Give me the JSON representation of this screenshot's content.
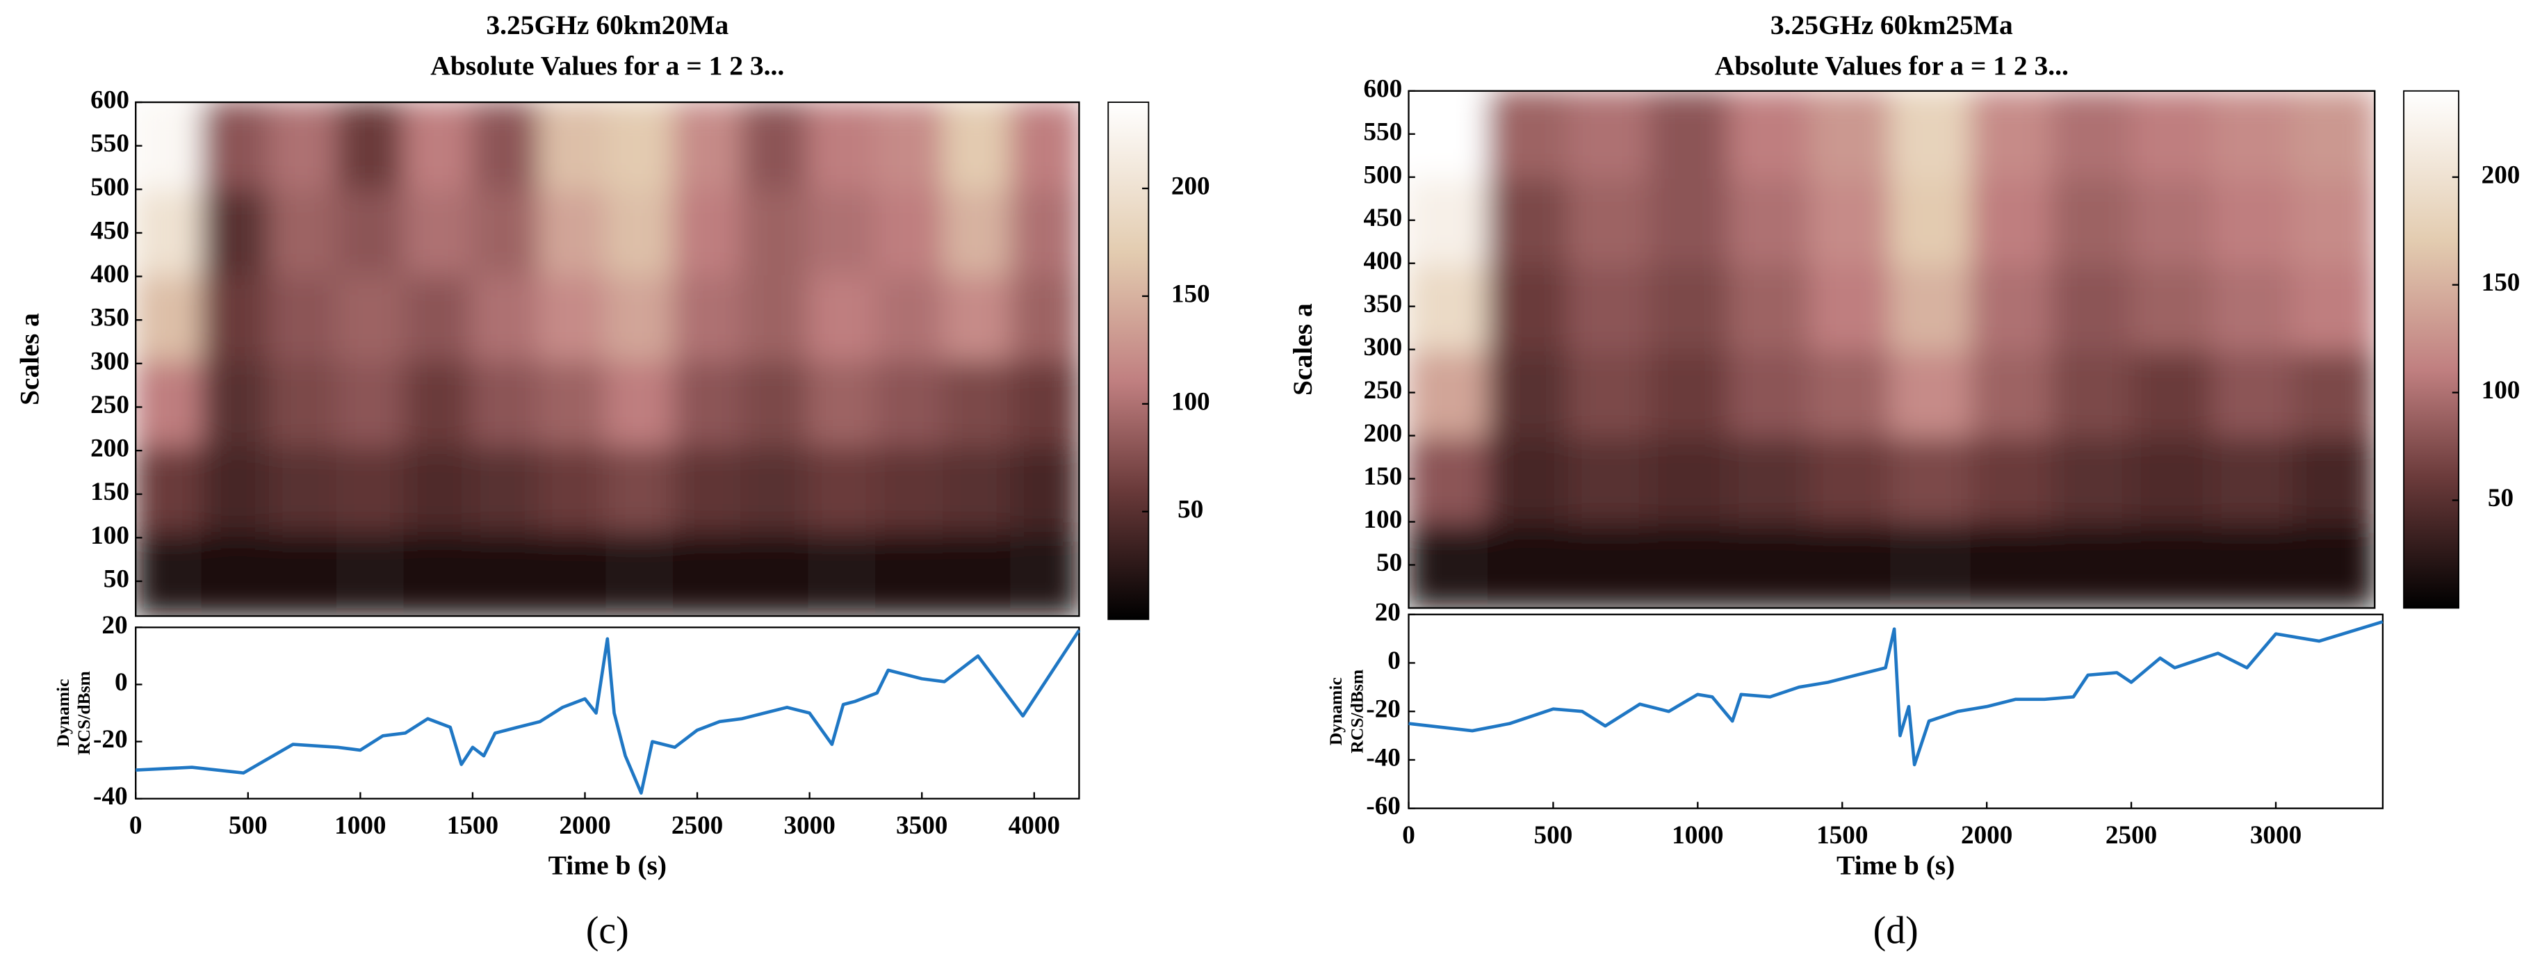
{
  "chart_data": [
    {
      "type": "heatmap",
      "title": "3.25GHz 60km20Ma",
      "subtitle": "Absolute Values for a =  1 2 3...",
      "ylabel": "Scales a",
      "xlim": [
        0,
        4200
      ],
      "ylim": [
        10,
        600
      ],
      "yticks": [
        50,
        100,
        150,
        200,
        250,
        300,
        350,
        400,
        450,
        500,
        550,
        600
      ],
      "clim": [
        0,
        240
      ],
      "cticks": [
        50,
        100,
        150,
        200
      ],
      "colorscale": [
        [
          0,
          "#000000"
        ],
        [
          0.25,
          "#6a3a3a"
        ],
        [
          0.46,
          "#c07f80"
        ],
        [
          0.71,
          "#e3ccb0"
        ],
        [
          1,
          "#ffffff"
        ]
      ],
      "z": [
        [
          20,
          15,
          15,
          20,
          15,
          15,
          15,
          20,
          15,
          15,
          20,
          15,
          15,
          20
        ],
        [
          60,
          40,
          50,
          55,
          45,
          50,
          60,
          70,
          55,
          50,
          60,
          55,
          50,
          40
        ],
        [
          110,
          50,
          70,
          80,
          60,
          80,
          90,
          110,
          80,
          70,
          90,
          80,
          70,
          60
        ],
        [
          160,
          60,
          80,
          90,
          80,
          100,
          120,
          140,
          100,
          90,
          110,
          100,
          120,
          90
        ],
        [
          200,
          50,
          90,
          80,
          100,
          90,
          140,
          160,
          110,
          90,
          100,
          110,
          150,
          100
        ],
        [
          230,
          80,
          100,
          60,
          110,
          80,
          160,
          170,
          120,
          80,
          110,
          120,
          170,
          110
        ]
      ]
    },
    {
      "type": "line",
      "xlabel": "Time b (s)",
      "ylabel": [
        "Dynamic",
        "RCS/dBsm"
      ],
      "caption": "(c)",
      "color": "#1f77c4",
      "xlim": [
        0,
        4200
      ],
      "ylim": [
        -40,
        20
      ],
      "xticks": [
        0,
        500,
        1000,
        1500,
        2000,
        2500,
        3000,
        3500,
        4000
      ],
      "yticks": [
        -40,
        -20,
        0,
        20
      ],
      "x": [
        0,
        250,
        480,
        700,
        900,
        1000,
        1100,
        1200,
        1300,
        1400,
        1450,
        1500,
        1550,
        1600,
        1700,
        1800,
        1900,
        2000,
        2050,
        2100,
        2130,
        2180,
        2250,
        2300,
        2400,
        2500,
        2600,
        2700,
        2800,
        2900,
        3000,
        3100,
        3150,
        3200,
        3300,
        3350,
        3500,
        3600,
        3750,
        3950,
        4200
      ],
      "values": [
        -30,
        -29,
        -31,
        -21,
        -22,
        -23,
        -18,
        -17,
        -12,
        -15,
        -28,
        -22,
        -25,
        -17,
        -15,
        -13,
        -8,
        -5,
        -10,
        16,
        -10,
        -25,
        -38,
        -20,
        -22,
        -16,
        -13,
        -12,
        -10,
        -8,
        -10,
        -21,
        -7,
        -6,
        -3,
        5,
        2,
        1,
        10,
        -11,
        19
      ]
    },
    {
      "type": "heatmap",
      "title": "3.25GHz 60km25Ma",
      "subtitle": "Absolute Values for a =  1 2 3...",
      "ylabel": "Scales a",
      "xlim": [
        0,
        3370
      ],
      "ylim": [
        0,
        600
      ],
      "yticks": [
        50,
        100,
        150,
        200,
        250,
        300,
        350,
        400,
        450,
        500,
        550,
        600
      ],
      "clim": [
        0,
        240
      ],
      "cticks": [
        50,
        100,
        150,
        200
      ],
      "colorscale": [
        [
          0,
          "#000000"
        ],
        [
          0.25,
          "#6a3a3a"
        ],
        [
          0.46,
          "#c07f80"
        ],
        [
          0.71,
          "#e3ccb0"
        ],
        [
          1,
          "#ffffff"
        ]
      ],
      "z": [
        [
          20,
          15,
          15,
          15,
          15,
          15,
          20,
          15,
          15,
          15,
          15,
          15
        ],
        [
          80,
          40,
          50,
          45,
          50,
          60,
          70,
          60,
          50,
          45,
          50,
          40
        ],
        [
          140,
          50,
          70,
          60,
          80,
          90,
          120,
          90,
          70,
          60,
          80,
          70
        ],
        [
          190,
          60,
          80,
          70,
          90,
          110,
          150,
          100,
          80,
          90,
          100,
          110
        ],
        [
          220,
          70,
          90,
          80,
          100,
          120,
          170,
          110,
          90,
          100,
          110,
          120
        ],
        [
          240,
          90,
          100,
          80,
          110,
          130,
          180,
          120,
          100,
          110,
          120,
          130
        ]
      ]
    },
    {
      "type": "line",
      "xlabel": "Time b (s)",
      "ylabel": [
        "Dynamic",
        "RCS/dBsm"
      ],
      "caption": "(d)",
      "color": "#1f77c4",
      "xlim": [
        0,
        3370
      ],
      "ylim": [
        -60,
        20
      ],
      "xticks": [
        0,
        500,
        1000,
        1500,
        2000,
        2500,
        3000
      ],
      "yticks": [
        -60,
        -40,
        -20,
        0,
        20
      ],
      "x": [
        0,
        220,
        350,
        500,
        600,
        680,
        800,
        900,
        1000,
        1050,
        1120,
        1150,
        1250,
        1350,
        1450,
        1550,
        1650,
        1680,
        1700,
        1730,
        1750,
        1800,
        1900,
        2000,
        2100,
        2200,
        2300,
        2350,
        2450,
        2500,
        2600,
        2650,
        2800,
        2900,
        3000,
        3150,
        3370
      ],
      "values": [
        -25,
        -28,
        -25,
        -19,
        -20,
        -26,
        -17,
        -20,
        -13,
        -14,
        -24,
        -13,
        -14,
        -10,
        -8,
        -5,
        -2,
        14,
        -30,
        -18,
        -42,
        -24,
        -20,
        -18,
        -15,
        -15,
        -14,
        -5,
        -4,
        -8,
        2,
        -2,
        4,
        -2,
        12,
        9,
        17
      ]
    }
  ]
}
